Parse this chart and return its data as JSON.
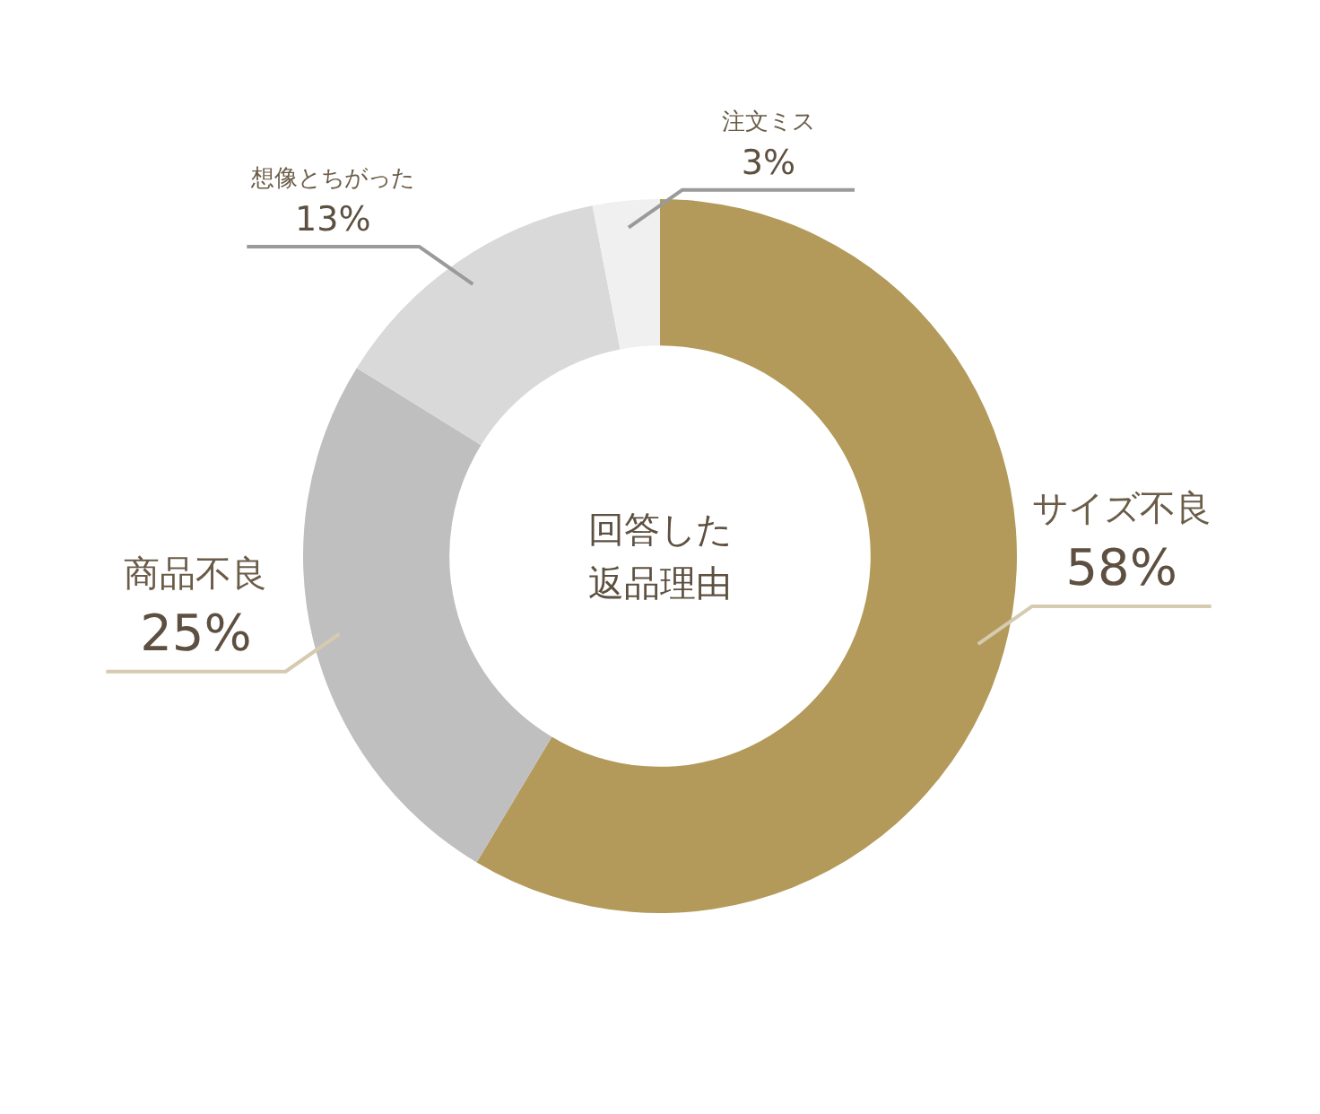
{
  "chart_data": {
    "type": "donut",
    "title": "回答した返品理由",
    "categories": [
      "サイズ不良",
      "商品不良",
      "想像とちがった",
      "注文ミス"
    ],
    "values": [
      58,
      25,
      13,
      3
    ],
    "colors": [
      "#b39a5a",
      "#bfbfbf",
      "#d9d9d9",
      "#f0f0f0"
    ],
    "value_labels": [
      "58%",
      "25%",
      "13%",
      "3%"
    ],
    "legend": false
  }
}
